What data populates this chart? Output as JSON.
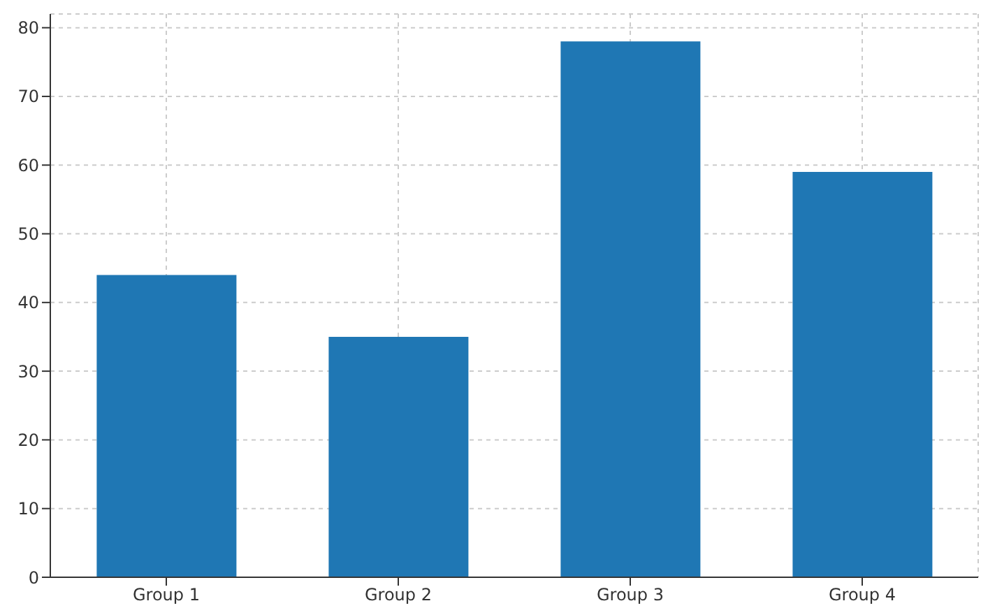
{
  "chart_data": {
    "type": "bar",
    "categories": [
      "Group 1",
      "Group 2",
      "Group 3",
      "Group 4"
    ],
    "values": [
      44,
      35,
      78,
      59
    ],
    "color": "#1f77b4",
    "ylim": [
      0,
      82
    ],
    "yticks": [
      0,
      10,
      20,
      30,
      40,
      50,
      60,
      70,
      80
    ],
    "grid": true
  }
}
